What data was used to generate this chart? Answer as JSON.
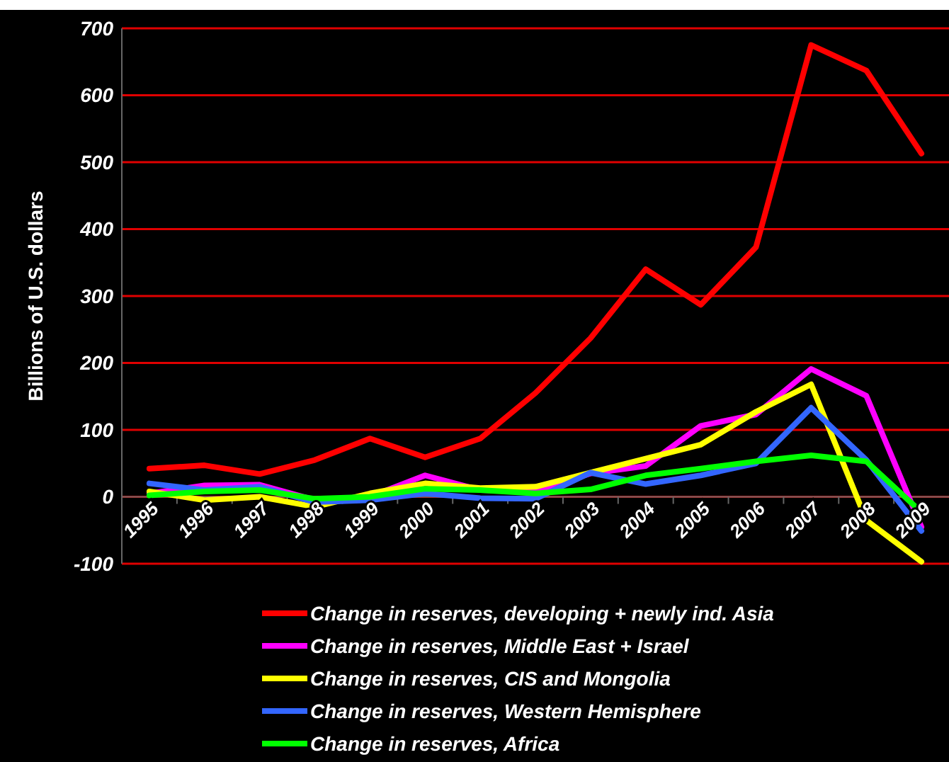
{
  "chart_data": {
    "type": "line",
    "ylabel": "Billions of U.S. dollars",
    "categories": [
      "1995",
      "1996",
      "1997",
      "1998",
      "1999",
      "2000",
      "2001",
      "2002",
      "2003",
      "2004",
      "2005",
      "2006",
      "2007",
      "2008",
      "2009"
    ],
    "series": [
      {
        "name": "Change in reserves, developing + newly ind. Asia",
        "color": "#ff0000",
        "values": [
          42,
          47,
          34,
          55,
          87,
          59,
          87,
          155,
          237,
          340,
          287,
          373,
          675,
          637,
          513
        ]
      },
      {
        "name": "Change in reserves, Middle East + Israel",
        "color": "#ff00ff",
        "values": [
          5,
          17,
          18,
          -5,
          0,
          32,
          10,
          8,
          35,
          46,
          106,
          123,
          191,
          151,
          -45
        ]
      },
      {
        "name": "Change in reserves, CIS and Mongolia",
        "color": "#ffff00",
        "values": [
          8,
          -5,
          0,
          -15,
          5,
          20,
          13,
          15,
          36,
          57,
          78,
          127,
          168,
          -35,
          -97
        ]
      },
      {
        "name": "Change in reserves, Western Hemisphere",
        "color": "#3366ff",
        "values": [
          20,
          10,
          15,
          -8,
          -5,
          5,
          -2,
          -3,
          36,
          19,
          32,
          50,
          133,
          55,
          -51
        ]
      },
      {
        "name": "Change in reserves, Africa",
        "color": "#00ff00",
        "values": [
          2,
          8,
          10,
          -3,
          0,
          12,
          10,
          5,
          11,
          32,
          42,
          53,
          62,
          53,
          -23
        ]
      }
    ],
    "ylim": [
      -100,
      700
    ],
    "yticks": [
      -100,
      0,
      100,
      200,
      300,
      400,
      500,
      600,
      700
    ],
    "grid": "y",
    "legend": "bottom",
    "marker": "none",
    "line_style": "solid"
  }
}
